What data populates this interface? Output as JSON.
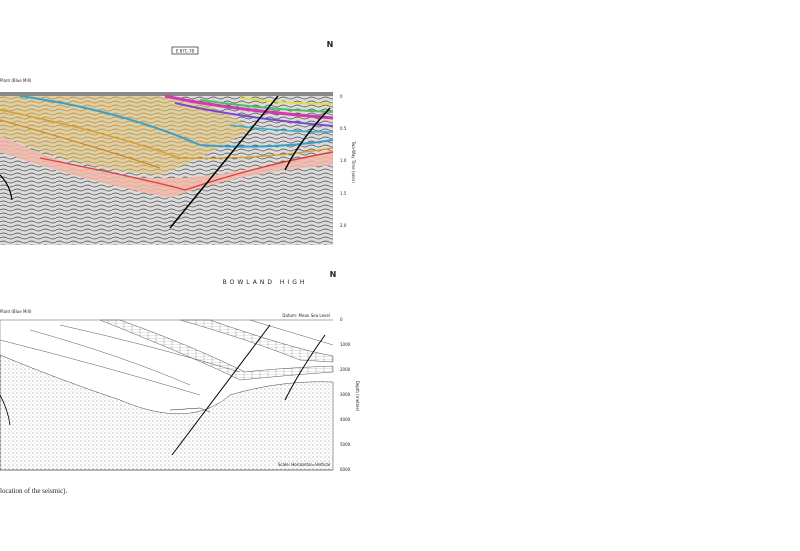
{
  "header": {
    "box_label": "E 87C-78",
    "north": "N"
  },
  "upper_section": {
    "label": "Plant (Blue Mill)",
    "axis_title": "Two-Way Time (secs)",
    "ticks": [
      "0",
      "0.5",
      "1.0",
      "1.5",
      "2.0"
    ]
  },
  "lower_section": {
    "north": "N",
    "title": "BOWLAND HIGH",
    "label": "Plant (Blue Mill)",
    "datum": "Datum: Mean Sea Level",
    "axis_title": "Depth (metres)",
    "ticks": [
      "0",
      "1000",
      "2000",
      "3000",
      "4000",
      "5000",
      "6000"
    ],
    "scale_note": "Scale: Horizontal=Vertical"
  },
  "caption": "location of the seismic)."
}
